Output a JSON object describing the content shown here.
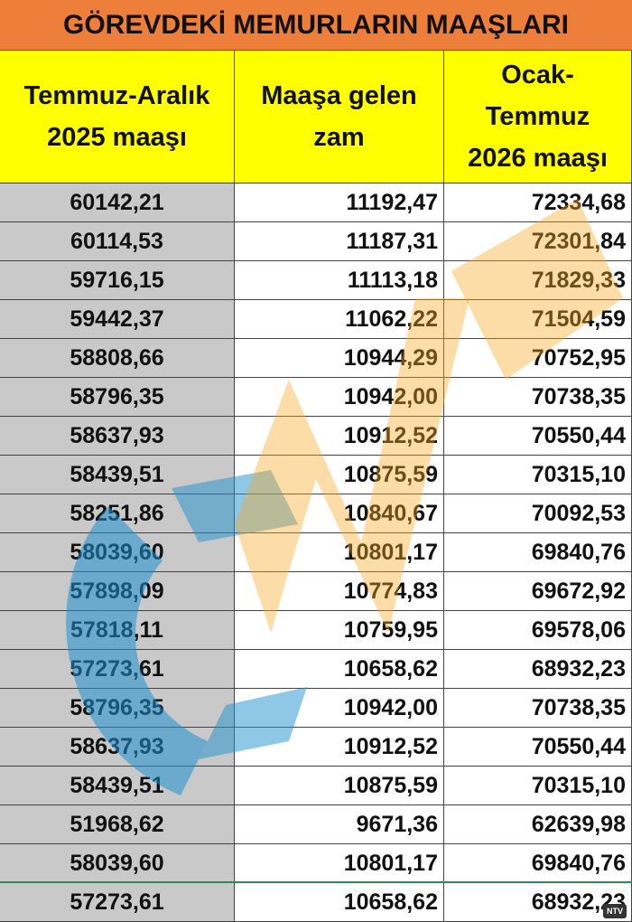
{
  "title": "GÖREVDEKİ MEMURLARIN MAAŞLARI",
  "table": {
    "headers": [
      [
        "Temmuz-Aralık",
        "2025 maaşı"
      ],
      [
        "Maaşa gelen",
        "zam"
      ],
      [
        "Ocak-",
        "Temmuz",
        "2026 maaşı"
      ]
    ],
    "rows": [
      [
        "60142,21",
        "11192,47",
        "72334,68"
      ],
      [
        "60114,53",
        "11187,31",
        "72301,84"
      ],
      [
        "59716,15",
        "11113,18",
        "71829,33"
      ],
      [
        "59442,37",
        "11062,22",
        "71504,59"
      ],
      [
        "58808,66",
        "10944,29",
        "70752,95"
      ],
      [
        "58796,35",
        "10942,00",
        "70738,35"
      ],
      [
        "58637,93",
        "10912,52",
        "70550,44"
      ],
      [
        "58439,51",
        "10875,59",
        "70315,10"
      ],
      [
        "58251,86",
        "10840,67",
        "70092,53"
      ],
      [
        "58039,60",
        "10801,17",
        "69840,76"
      ],
      [
        "57898,09",
        "10774,83",
        "69672,92"
      ],
      [
        "57818,11",
        "10759,95",
        "69578,06"
      ],
      [
        "57273,61",
        "10658,62",
        "68932,23"
      ],
      [
        "58796,35",
        "10942,00",
        "70738,35"
      ],
      [
        "58637,93",
        "10912,52",
        "70550,44"
      ],
      [
        "58439,51",
        "10875,59",
        "70315,10"
      ],
      [
        "51968,62",
        "9671,36",
        "62639,98"
      ],
      [
        "58039,60",
        "10801,17",
        "69840,76"
      ],
      [
        "57273,61",
        "10658,62",
        "68932,23"
      ]
    ]
  },
  "logo": "NTV"
}
